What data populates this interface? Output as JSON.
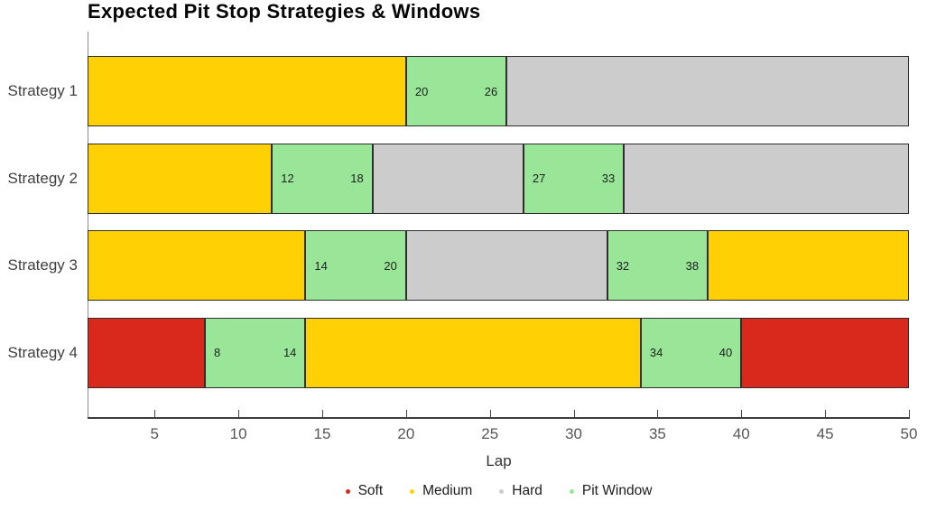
{
  "title": "Expected Pit Stop Strategies & Windows",
  "chart_data": {
    "type": "bar",
    "subtype": "horizontal-stacked-gantt",
    "title": "Expected Pit Stop Strategies & Windows",
    "xlabel": "Lap",
    "ylabel": "",
    "xlim": [
      1,
      50
    ],
    "xticks": [
      5,
      10,
      15,
      20,
      25,
      30,
      35,
      40,
      45,
      50
    ],
    "grid": false,
    "legend_position": "bottom-center",
    "categories": [
      "Strategy 1",
      "Strategy 2",
      "Strategy 3",
      "Strategy 4"
    ],
    "legend": [
      {
        "label": "Soft",
        "color": "#d8291c"
      },
      {
        "label": "Medium",
        "color": "#ffd104"
      },
      {
        "label": "Hard",
        "color": "#cccccc"
      },
      {
        "label": "Pit Window",
        "color": "#99e699"
      }
    ],
    "rows": [
      {
        "label": "Strategy 1",
        "segments": [
          {
            "compound": "Medium",
            "start": 1,
            "end": 20,
            "show_range_labels": false
          },
          {
            "compound": "Pit Window",
            "start": 20,
            "end": 26,
            "show_range_labels": true
          },
          {
            "compound": "Hard",
            "start": 26,
            "end": 50,
            "show_range_labels": false
          }
        ]
      },
      {
        "label": "Strategy 2",
        "segments": [
          {
            "compound": "Medium",
            "start": 1,
            "end": 12,
            "show_range_labels": false
          },
          {
            "compound": "Pit Window",
            "start": 12,
            "end": 18,
            "show_range_labels": true
          },
          {
            "compound": "Hard",
            "start": 18,
            "end": 27,
            "show_range_labels": false
          },
          {
            "compound": "Pit Window",
            "start": 27,
            "end": 33,
            "show_range_labels": true
          },
          {
            "compound": "Hard",
            "start": 33,
            "end": 50,
            "show_range_labels": false
          }
        ]
      },
      {
        "label": "Strategy 3",
        "segments": [
          {
            "compound": "Medium",
            "start": 1,
            "end": 14,
            "show_range_labels": false
          },
          {
            "compound": "Pit Window",
            "start": 14,
            "end": 20,
            "show_range_labels": true
          },
          {
            "compound": "Hard",
            "start": 20,
            "end": 32,
            "show_range_labels": false
          },
          {
            "compound": "Pit Window",
            "start": 32,
            "end": 38,
            "show_range_labels": true
          },
          {
            "compound": "Medium",
            "start": 38,
            "end": 50,
            "show_range_labels": false
          }
        ]
      },
      {
        "label": "Strategy 4",
        "segments": [
          {
            "compound": "Soft",
            "start": 1,
            "end": 8,
            "show_range_labels": false
          },
          {
            "compound": "Pit Window",
            "start": 8,
            "end": 14,
            "show_range_labels": true
          },
          {
            "compound": "Medium",
            "start": 14,
            "end": 34,
            "show_range_labels": false
          },
          {
            "compound": "Pit Window",
            "start": 34,
            "end": 40,
            "show_range_labels": true
          },
          {
            "compound": "Soft",
            "start": 40,
            "end": 50,
            "show_range_labels": false
          }
        ]
      }
    ]
  }
}
